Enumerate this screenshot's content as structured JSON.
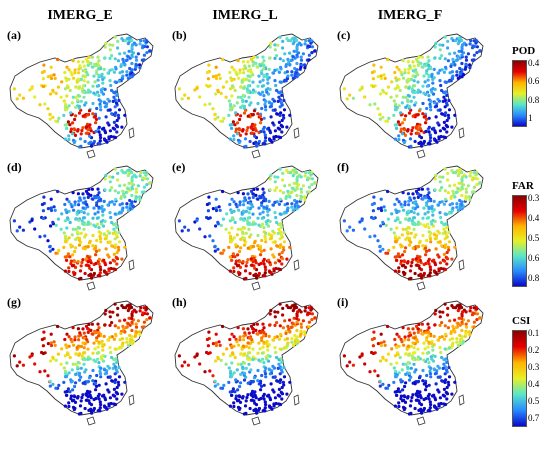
{
  "columns": [
    "IMERG_E",
    "IMERG_L",
    "IMERG_F"
  ],
  "panel_labels": [
    [
      "(a)",
      "(b)",
      "(c)"
    ],
    [
      "(d)",
      "(e)",
      "(f)"
    ],
    [
      "(g)",
      "(h)",
      "(i)"
    ]
  ],
  "colorbars": [
    {
      "title": "POD",
      "ticks": [
        "0.4",
        "0.6",
        "0.8",
        "1"
      ],
      "reversed": true
    },
    {
      "title": "FAR",
      "ticks": [
        "0.3",
        "0.4",
        "0.5",
        "0.6",
        "0.8"
      ],
      "reversed": false
    },
    {
      "title": "CSI",
      "ticks": [
        "0.1",
        "0.2",
        "0.3",
        "0.4",
        "0.5",
        "0.7"
      ],
      "reversed": false
    }
  ],
  "colors": {
    "outline": "#333333",
    "red": "#c40000",
    "blue": "#0a0ad0",
    "yellow": "#ffe000"
  }
}
